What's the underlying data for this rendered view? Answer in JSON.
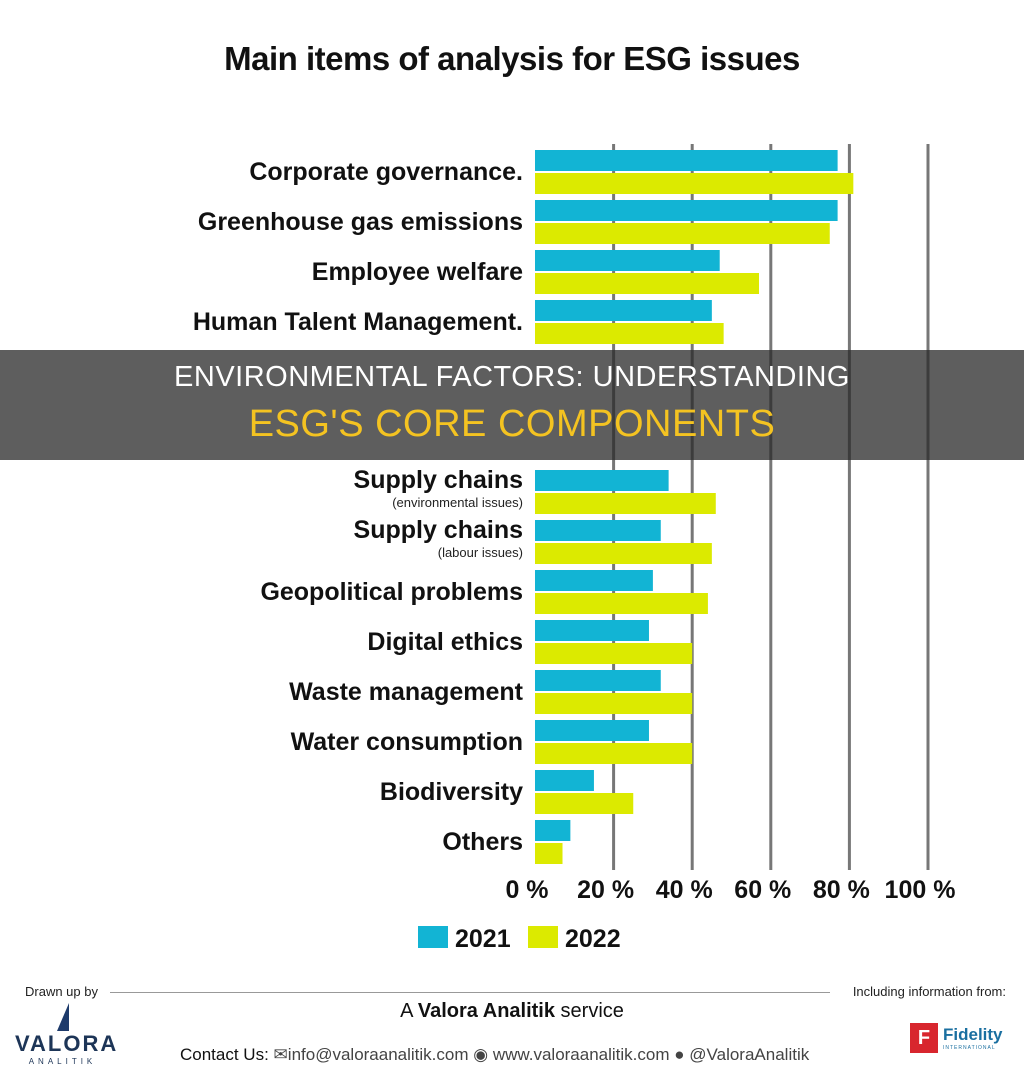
{
  "chart_data": {
    "type": "bar",
    "orientation": "horizontal",
    "title": "Main items of analysis for ESG issues",
    "categories": [
      "Corporate governance.",
      "Greenhouse gas emissions",
      "Employee welfare",
      "Human Talent Management.",
      "Supply chains",
      "Supply chains",
      "Geopolitical problems",
      "Digital ethics",
      "Waste management",
      "Water consumption",
      "Biodiversity",
      "Others"
    ],
    "category_notes": [
      "",
      "",
      "",
      "",
      "(environmental issues)",
      "(labour issues)",
      "",
      "",
      "",
      "",
      "",
      ""
    ],
    "series": [
      {
        "name": "2021",
        "color": "#12b4d4",
        "values": [
          77,
          77,
          47,
          45,
          34,
          32,
          30,
          29,
          32,
          29,
          15,
          9
        ]
      },
      {
        "name": "2022",
        "color": "#dcea00",
        "values": [
          81,
          75,
          57,
          48,
          46,
          45,
          44,
          40,
          40,
          40,
          25,
          7
        ]
      }
    ],
    "xlim": [
      0,
      100
    ],
    "xticks": [
      "0 %",
      "20 %",
      "40 %",
      "60 %",
      "80 %",
      "100 %"
    ],
    "grid": true,
    "legend_position": "bottom"
  },
  "overlay": {
    "line1": "ENVIRONMENTAL FACTORS: UNDERSTANDING",
    "line2": "ESG'S CORE COMPONENTS"
  },
  "footer": {
    "drawn_by": "Drawn up by",
    "including": "Including information from:",
    "service_a": "A",
    "service_brand": "Valora Analitik",
    "service_rest": "service",
    "contact_label": "Contact Us:",
    "email": "info@valoraanalitik.com",
    "website": "www.valoraanalitik.com",
    "twitter": "@ValoraAnalitik",
    "logo_left": "VALORA",
    "logo_left_sub": "ANALITIK",
    "logo_right": "Fidelity",
    "logo_right_sub": "INTERNATIONAL"
  }
}
